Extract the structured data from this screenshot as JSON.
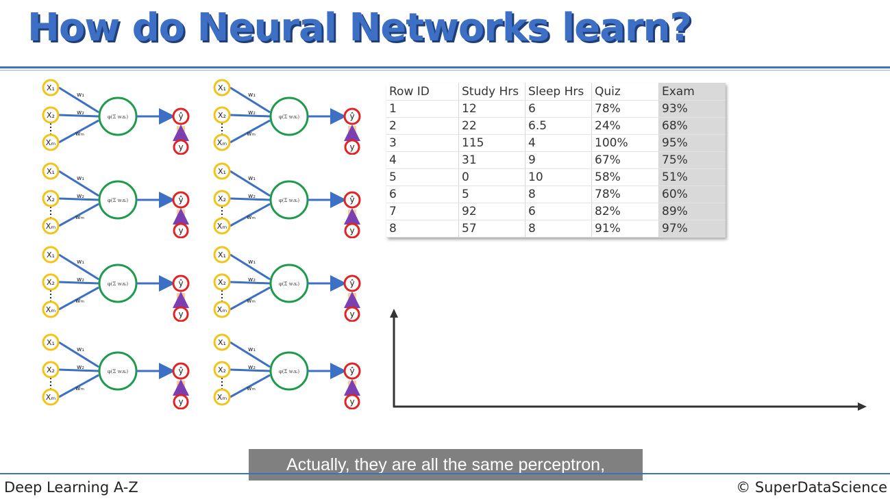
{
  "slide": {
    "title": "How do Neural Networks learn?",
    "caption": "Actually, they are all the same perceptron,",
    "footer_left": "Deep Learning A-Z",
    "footer_right": "© SuperDataScience"
  },
  "perceptron": {
    "inputs": [
      "X₁",
      "X₂",
      "Xₘ"
    ],
    "weights": [
      "w₁",
      "w₂",
      "wₘ"
    ],
    "output": "ŷ",
    "actual": "y",
    "colors": {
      "input_ring": "#f2c318",
      "neuron_ring": "#1e9a4b",
      "output_ring": "#e32323",
      "arrow": "#3d6fc4",
      "error_arrow": "#7a3fb0",
      "error_glow": "#f0b060"
    }
  },
  "table": {
    "headers": [
      "Row ID",
      "Study Hrs",
      "Sleep Hrs",
      "Quiz",
      "Exam"
    ],
    "rows": [
      [
        "1",
        "12",
        "6",
        "78%",
        "93%"
      ],
      [
        "2",
        "22",
        "6.5",
        "24%",
        "68%"
      ],
      [
        "3",
        "115",
        "4",
        "100%",
        "95%"
      ],
      [
        "4",
        "31",
        "9",
        "67%",
        "75%"
      ],
      [
        "5",
        "0",
        "10",
        "58%",
        "51%"
      ],
      [
        "6",
        "5",
        "8",
        "78%",
        "60%"
      ],
      [
        "7",
        "92",
        "6",
        "82%",
        "89%"
      ],
      [
        "8",
        "57",
        "8",
        "91%",
        "97%"
      ]
    ]
  }
}
